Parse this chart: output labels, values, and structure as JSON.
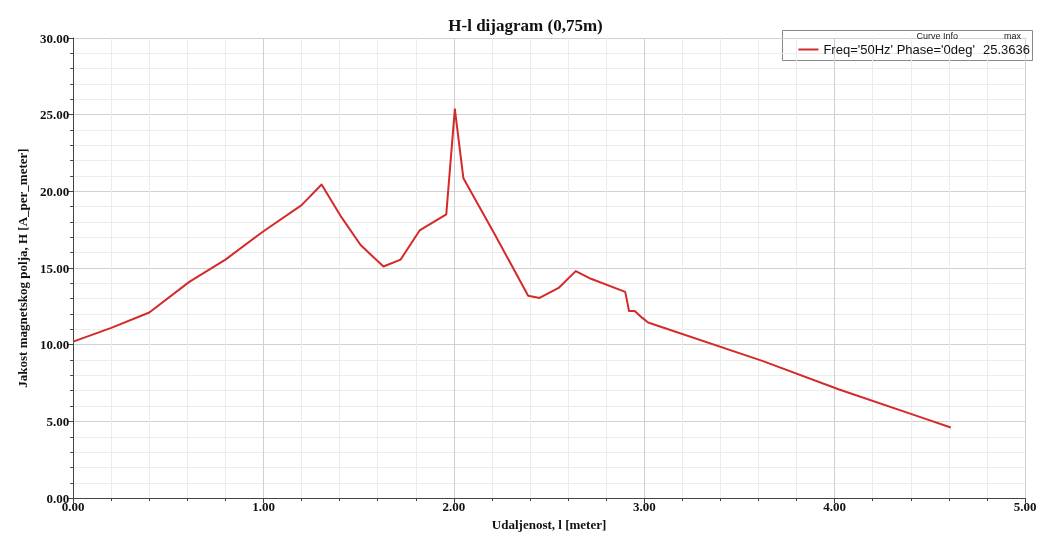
{
  "chart_data": {
    "type": "line",
    "title": "H-l dijagram (0,75m)",
    "xlabel": "Udaljenost, l [meter]",
    "ylabel": "Jakost magnetskog polja, H [A_per_meter]",
    "legend_title": "Curve Info",
    "legend": "top right",
    "annotations": [
      "max",
      "25.3636"
    ],
    "grid": true,
    "marker": "none",
    "line_style": "solid",
    "xlim": [
      0,
      5
    ],
    "xticks": [
      {
        "value": 0,
        "label": "0.00"
      },
      {
        "value": 1,
        "label": "1.00"
      },
      {
        "value": 2,
        "label": "2.00"
      },
      {
        "value": 3,
        "label": "3.00"
      },
      {
        "value": 4,
        "label": "4.00"
      },
      {
        "value": 5,
        "label": "5.00"
      }
    ],
    "ylim": [
      0,
      30
    ],
    "yticks": [
      {
        "value": 0,
        "label": "0.00"
      },
      {
        "value": 5,
        "label": "5.00"
      },
      {
        "value": 10,
        "label": "10.00"
      },
      {
        "value": 15,
        "label": "15.00"
      },
      {
        "value": 20,
        "label": "20.00"
      },
      {
        "value": 25,
        "label": "25.00"
      },
      {
        "value": 30,
        "label": "30.00"
      }
    ],
    "x": [
      0,
      0.2,
      0.4,
      0.61,
      0.8,
      1.0,
      1.2,
      1.305,
      1.41,
      1.51,
      1.63,
      1.72,
      1.82,
      1.96,
      2.005,
      2.05,
      2.21,
      2.39,
      2.45,
      2.55,
      2.64,
      2.72,
      2.9,
      2.92,
      2.95,
      2.99,
      3.02,
      3.62,
      4.02,
      4.47,
      4.61
    ],
    "series": [
      {
        "name": "Freq='50Hz' Phase='0deg'",
        "color": "#d42a2a",
        "values": [
          10.2,
          11.1,
          12.1,
          14.1,
          15.55,
          17.4,
          19.1,
          20.45,
          18.3,
          16.5,
          15.1,
          15.55,
          17.45,
          18.5,
          25.36,
          20.85,
          17.3,
          13.2,
          13.05,
          13.7,
          14.8,
          14.3,
          13.45,
          12.2,
          12.2,
          11.75,
          11.45,
          8.95,
          7.1,
          5.2,
          4.6
        ]
      }
    ]
  }
}
